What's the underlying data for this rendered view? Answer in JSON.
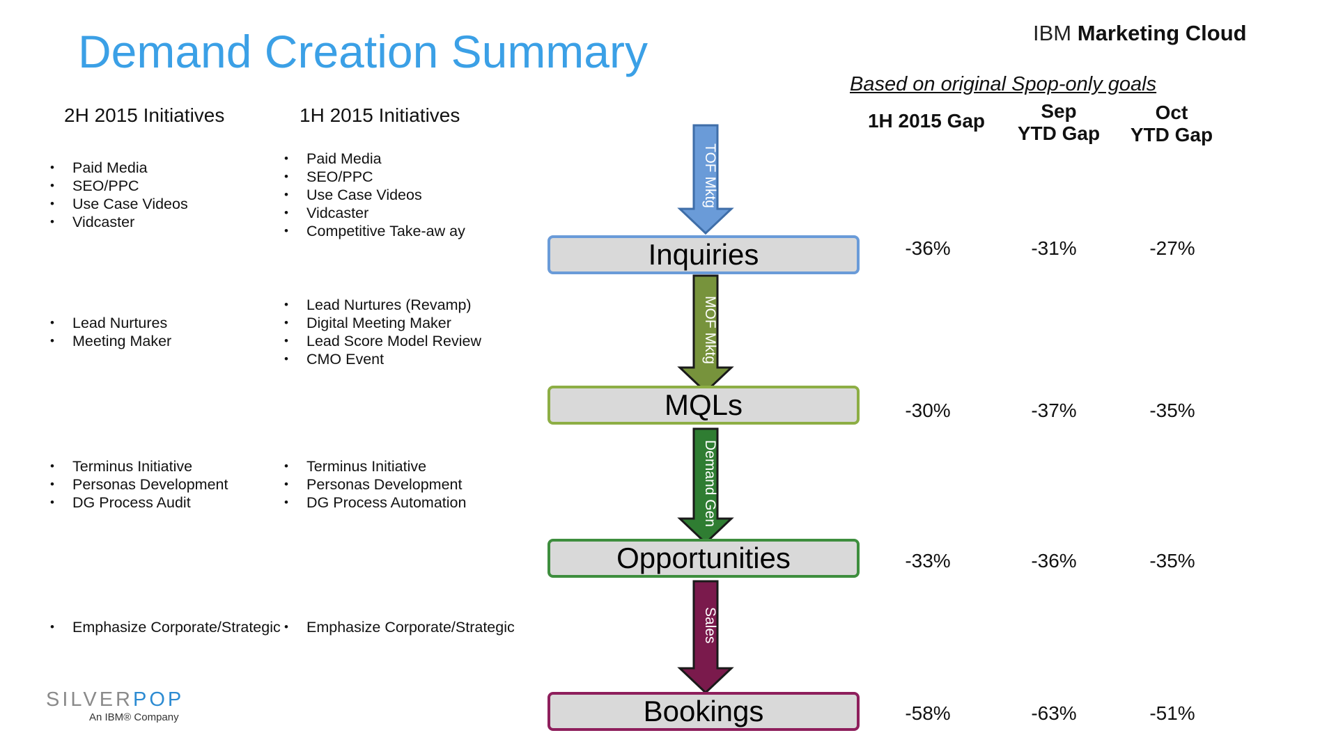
{
  "header": {
    "title": "Demand Creation Summary",
    "brand_prefix": "IBM",
    "brand_bold": "Marketing Cloud"
  },
  "columns": {
    "h2_2015_label": "2H 2015 Initiatives",
    "h1_2015_label": "1H 2015 Initiatives"
  },
  "groups": [
    {
      "h2": [
        "Paid Media",
        "SEO/PPC",
        "Use Case Videos",
        "Vidcaster"
      ],
      "h1": [
        "Paid Media",
        "SEO/PPC",
        "Use Case Videos",
        "Vidcaster",
        "Competitive Take-aw ay"
      ]
    },
    {
      "h2": [
        "Lead Nurtures",
        "Meeting Maker"
      ],
      "h1": [
        "Lead Nurtures (Revamp)",
        "Digital Meeting Maker",
        "Lead Score Model Review",
        "CMO Event"
      ]
    },
    {
      "h2": [
        "Terminus Initiative",
        "Personas Development",
        "DG Process Audit"
      ],
      "h1": [
        "Terminus Initiative",
        "Personas Development",
        "DG Process Automation"
      ]
    },
    {
      "h2": [
        "Emphasize Corporate/Strategic"
      ],
      "h1": [
        "Emphasize Corporate/Strategic"
      ]
    }
  ],
  "funnel": {
    "stages": [
      {
        "label": "Inquiries",
        "border_color": "#6A9BD8"
      },
      {
        "label": "MQLs",
        "border_color": "#8DAE45"
      },
      {
        "label": "Opportunities",
        "border_color": "#3E8E3E"
      },
      {
        "label": "Bookings",
        "border_color": "#8E1F5C"
      }
    ],
    "arrows": [
      {
        "label": "TOF Mktg",
        "color": "#6A9BD8"
      },
      {
        "label": "MOF Mktg",
        "color": "#77933C"
      },
      {
        "label": "Demand Gen",
        "color": "#2F7D32"
      },
      {
        "label": "Sales",
        "color": "#7A1A4C"
      }
    ]
  },
  "gaps": {
    "basis_note": "Based on original Spop-only goals",
    "headers": {
      "h1_gap": [
        "1H 2015 Gap"
      ],
      "sep_gap": [
        "Sep",
        "YTD Gap"
      ],
      "oct_gap": [
        "Oct",
        "YTD Gap"
      ]
    },
    "rows": [
      {
        "h1": "-36%",
        "sep": "-31%",
        "oct": "-27%"
      },
      {
        "h1": "-30%",
        "sep": "-37%",
        "oct": "-35%"
      },
      {
        "h1": "-33%",
        "sep": "-36%",
        "oct": "-35%"
      },
      {
        "h1": "-58%",
        "sep": "-63%",
        "oct": "-51%"
      }
    ]
  },
  "footer": {
    "logo_silver": "SILVER",
    "logo_pop": "POP",
    "logo_sub": "An IBM® Company"
  }
}
